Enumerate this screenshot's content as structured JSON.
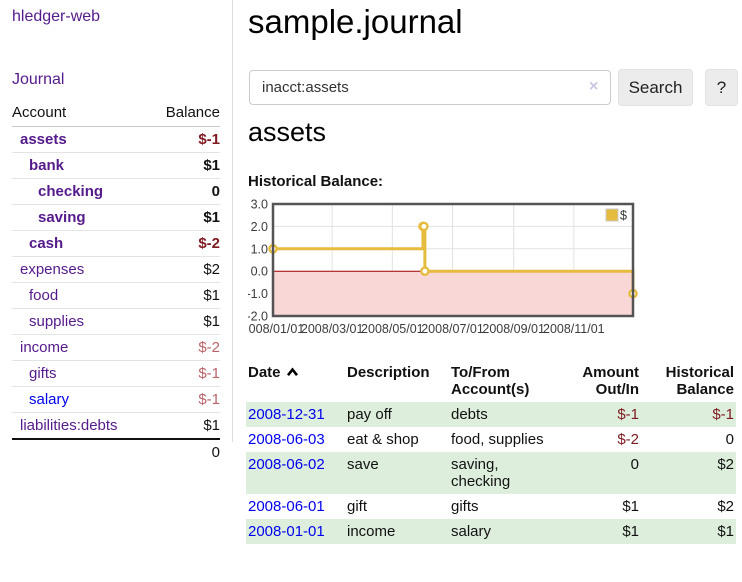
{
  "app_title": "hledger-web",
  "sidebar": {
    "brand": "hledger-web",
    "journal_link": "Journal",
    "table": {
      "headers": {
        "account": "Account",
        "balance": "Balance"
      },
      "accounts": [
        {
          "label": "assets",
          "balance": "$-1",
          "depth": 1,
          "matched": true,
          "negative": "strong"
        },
        {
          "label": "bank",
          "balance": "$1",
          "depth": 2,
          "matched": true,
          "negative": null
        },
        {
          "label": "checking",
          "balance": "0",
          "depth": 3,
          "matched": true,
          "negative": null
        },
        {
          "label": "saving",
          "balance": "$1",
          "depth": 3,
          "matched": true,
          "negative": null
        },
        {
          "label": "cash",
          "balance": "$-2",
          "depth": 2,
          "matched": true,
          "negative": "strong"
        },
        {
          "label": "expenses",
          "balance": "$2",
          "depth": 1,
          "matched": false,
          "negative": null
        },
        {
          "label": "food",
          "balance": "$1",
          "depth": 2,
          "matched": false,
          "negative": null
        },
        {
          "label": "supplies",
          "balance": "$1",
          "depth": 2,
          "matched": false,
          "negative": null
        },
        {
          "label": "income",
          "balance": "$-2",
          "depth": 1,
          "matched": false,
          "negative": "soft"
        },
        {
          "label": "gifts",
          "balance": "$-1",
          "depth": 2,
          "matched": false,
          "negative": "soft"
        },
        {
          "label": "salary",
          "balance": "$-1",
          "depth": 2,
          "matched": false,
          "negative": "soft",
          "link_state": "unvisited"
        },
        {
          "label": "liabilities:debts",
          "balance": "$1",
          "depth": 1,
          "matched": false,
          "negative": null
        }
      ],
      "total": "0"
    }
  },
  "main": {
    "title": "sample.journal",
    "search": {
      "value": "inacct:assets",
      "clear_icon": "×",
      "search_label": "Search",
      "help_label": "?"
    },
    "account_heading": "assets",
    "balance_label": "Historical Balance:"
  },
  "chart_data": {
    "type": "line",
    "step": true,
    "title": "Historical Balance",
    "series": [
      {
        "name": "$",
        "color": "#e6bc3e",
        "points": [
          [
            "2008-01-01",
            1
          ],
          [
            "2008-06-01",
            2
          ],
          [
            "2008-06-02",
            2
          ],
          [
            "2008-06-03",
            0
          ],
          [
            "2008-12-31",
            -1
          ]
        ]
      }
    ],
    "x_range": [
      "2008-01-01",
      "2008-12-31"
    ],
    "ylim": [
      -2,
      3
    ],
    "y_ticks": [
      {
        "v": 3,
        "label": "3.0"
      },
      {
        "v": 2,
        "label": "2.0"
      },
      {
        "v": 1,
        "label": "1.0"
      },
      {
        "v": 0,
        "label": "0.0"
      },
      {
        "v": -1,
        "label": "-1.0"
      },
      {
        "v": -2,
        "label": "-2.0"
      }
    ],
    "x_ticks": [
      {
        "d": "2008-01-01",
        "label": "2008/01/01"
      },
      {
        "d": "2008-03-01",
        "label": "2008/03/01"
      },
      {
        "d": "2008-05-01",
        "label": "2008/05/01"
      },
      {
        "d": "2008-07-01",
        "label": "2008/07/01"
      },
      {
        "d": "2008-09-01",
        "label": "2008/09/01"
      },
      {
        "d": "2008-11-01",
        "label": "2008/11/01"
      }
    ],
    "legend": {
      "label": "$",
      "position": "top-right"
    },
    "grid": true,
    "negative_region_color": "#f9d7d7",
    "zero_line_color": "#a40000",
    "border_color": "#545454"
  },
  "register": {
    "headers": {
      "date": "Date",
      "description": "Description",
      "accounts": "To/From\nAccount(s)",
      "amount": "Amount\nOut/In",
      "balance": "Historical\nBalance"
    },
    "sort": {
      "column": "date",
      "direction": "ascending"
    },
    "rows": [
      {
        "date": "2008-12-31",
        "description": "pay off",
        "accounts": "debts",
        "amount": "$-1",
        "amount_negative": true,
        "balance": "$-1",
        "balance_negative": true
      },
      {
        "date": "2008-06-03",
        "description": "eat & shop",
        "accounts": "food, supplies",
        "amount": "$-2",
        "amount_negative": true,
        "balance": "0",
        "balance_negative": false
      },
      {
        "date": "2008-06-02",
        "description": "save",
        "accounts": "saving,\nchecking",
        "amount": "0",
        "amount_negative": false,
        "balance": "$2",
        "balance_negative": false
      },
      {
        "date": "2008-06-01",
        "description": "gift",
        "accounts": "gifts",
        "amount": "$1",
        "amount_negative": false,
        "balance": "$2",
        "balance_negative": false
      },
      {
        "date": "2008-01-01",
        "description": "income",
        "accounts": "salary",
        "amount": "$1",
        "amount_negative": false,
        "balance": "$1",
        "balance_negative": false
      }
    ]
  }
}
